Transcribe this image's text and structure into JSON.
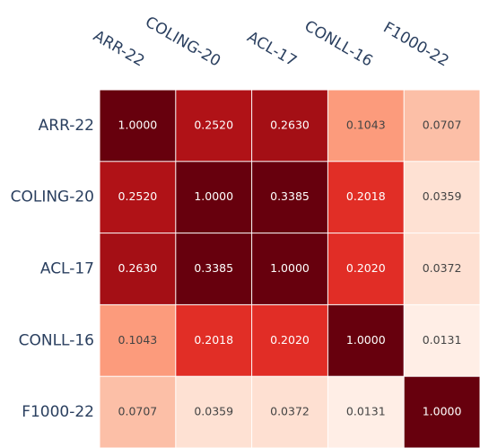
{
  "chart_data": {
    "type": "heatmap",
    "x": [
      "ARR-22",
      "COLING-20",
      "ACL-17",
      "CONLL-16",
      "F1000-22"
    ],
    "y": [
      "ARR-22",
      "COLING-20",
      "ACL-17",
      "CONLL-16",
      "F1000-22"
    ],
    "values": [
      [
        1.0,
        0.252,
        0.263,
        0.1043,
        0.0707
      ],
      [
        0.252,
        1.0,
        0.3385,
        0.2018,
        0.0359
      ],
      [
        0.263,
        0.3385,
        1.0,
        0.202,
        0.0372
      ],
      [
        0.1043,
        0.2018,
        0.202,
        1.0,
        0.0131
      ],
      [
        0.0707,
        0.0359,
        0.0372,
        0.0131,
        1.0
      ]
    ],
    "value_labels": [
      [
        "1.0000",
        "0.2520",
        "0.2630",
        "0.1043",
        "0.0707"
      ],
      [
        "0.2520",
        "1.0000",
        "0.3385",
        "0.2018",
        "0.0359"
      ],
      [
        "0.2630",
        "0.3385",
        "1.0000",
        "0.2020",
        "0.0372"
      ],
      [
        "0.1043",
        "0.2018",
        "0.2020",
        "1.0000",
        "0.0131"
      ],
      [
        "0.0707",
        "0.0359",
        "0.0372",
        "0.0131",
        "1.0000"
      ]
    ],
    "colorscale": [
      "#fff5f0",
      "#fee0d2",
      "#fcbba1",
      "#fc9272",
      "#fb6a4a",
      "#ef3b2c",
      "#cb181d",
      "#a50f15",
      "#67000d"
    ],
    "zlim": [
      0,
      0.3
    ]
  }
}
